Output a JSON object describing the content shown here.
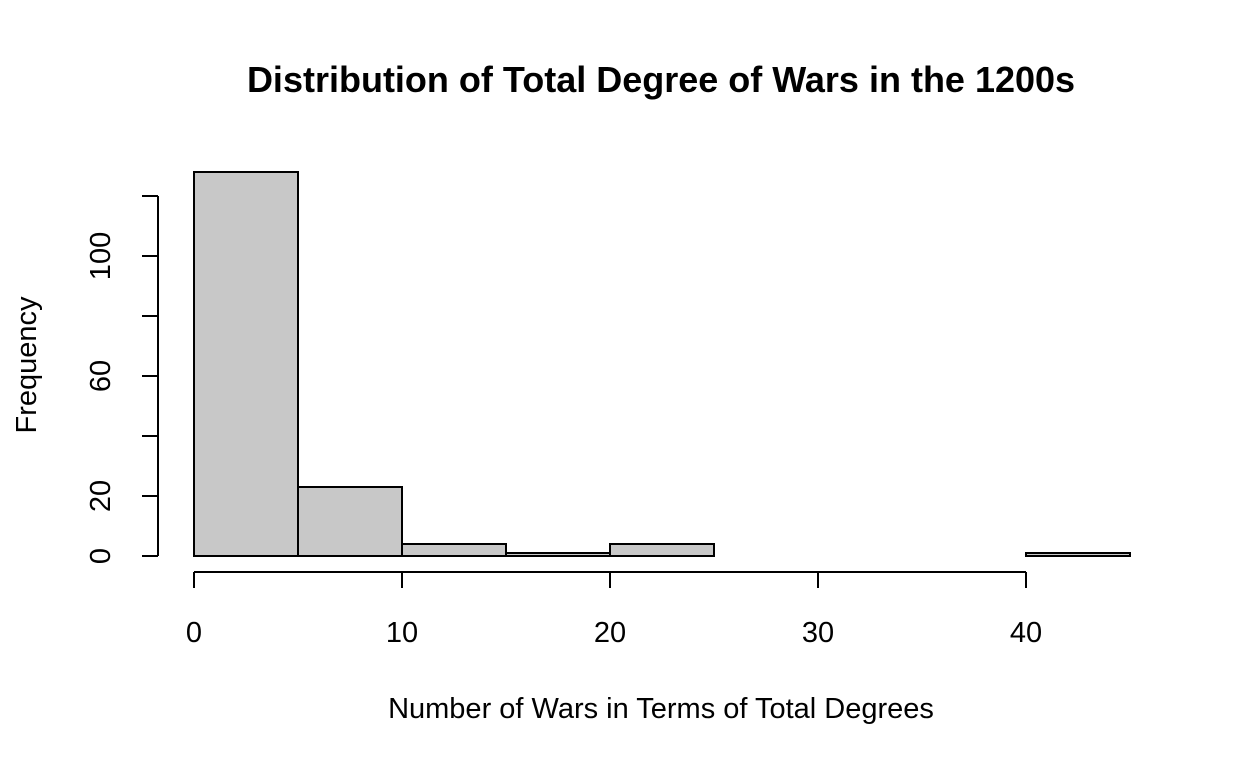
{
  "chart_data": {
    "type": "bar",
    "title": "Distribution of Total Degree of Wars in the 1200s",
    "xlabel": "Number of Wars in Terms of Total Degrees",
    "ylabel": "Frequency",
    "bins": [
      {
        "from": 0,
        "to": 5,
        "count": 128
      },
      {
        "from": 5,
        "to": 10,
        "count": 23
      },
      {
        "from": 10,
        "to": 15,
        "count": 4
      },
      {
        "from": 15,
        "to": 20,
        "count": 1
      },
      {
        "from": 20,
        "to": 25,
        "count": 4
      },
      {
        "from": 25,
        "to": 30,
        "count": 0
      },
      {
        "from": 30,
        "to": 35,
        "count": 0
      },
      {
        "from": 35,
        "to": 40,
        "count": 0
      },
      {
        "from": 40,
        "to": 45,
        "count": 1
      }
    ],
    "x_ticks": [
      0,
      10,
      20,
      30,
      40
    ],
    "y_ticks": [
      0,
      20,
      40,
      60,
      80,
      100,
      120
    ],
    "y_tick_labels": [
      "0",
      "20",
      "",
      "60",
      "",
      "100",
      ""
    ],
    "xlim": [
      0,
      45
    ],
    "ylim": [
      0,
      128
    ],
    "grid": false,
    "legend": "none",
    "colors": {
      "bar_fill": "#c8c8c8",
      "bar_stroke": "#000000"
    }
  }
}
